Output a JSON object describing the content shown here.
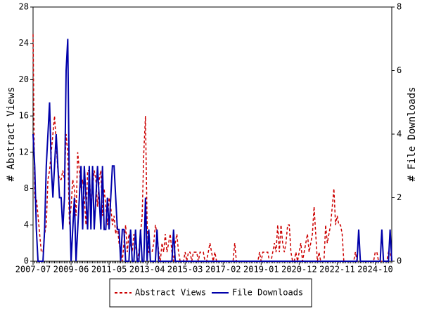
{
  "chart_data": {
    "type": "line",
    "categories": [
      "2007-07",
      null,
      null,
      null,
      null,
      null,
      null,
      null,
      null,
      null,
      null,
      null,
      null,
      null,
      null,
      null,
      null,
      null,
      null,
      null,
      null,
      null,
      null,
      "2009-06",
      null,
      null,
      null,
      null,
      null,
      null,
      null,
      null,
      null,
      null,
      null,
      null,
      null,
      null,
      null,
      null,
      null,
      null,
      null,
      null,
      null,
      null,
      "2011-05",
      null,
      null,
      null,
      null,
      null,
      null,
      null,
      null,
      null,
      null,
      null,
      null,
      null,
      null,
      null,
      null,
      null,
      null,
      null,
      null,
      null,
      null,
      "2013-04",
      null,
      null,
      null,
      null,
      null,
      null,
      null,
      null,
      null,
      null,
      null,
      null,
      null,
      null,
      null,
      null,
      null,
      null,
      null,
      null,
      null,
      null,
      "2015-03",
      null,
      null,
      null,
      null,
      null,
      null,
      null,
      null,
      null,
      null,
      null,
      null,
      null,
      null,
      null,
      null,
      null,
      null,
      null,
      null,
      null,
      null,
      "2017-02",
      null,
      null,
      null,
      null,
      null,
      null,
      null,
      null,
      null,
      null,
      null,
      null,
      null,
      null,
      null,
      null,
      null,
      null,
      null,
      null,
      null,
      null,
      "2019-01",
      null,
      null,
      null,
      null,
      null,
      null,
      null,
      null,
      null,
      null,
      null,
      null,
      null,
      null,
      null,
      null,
      null,
      null,
      null,
      null,
      null,
      null,
      "2020-12",
      null,
      null,
      null,
      null,
      null,
      null,
      null,
      null,
      null,
      null,
      null,
      null,
      null,
      null,
      null,
      null,
      null,
      null,
      null,
      null,
      null,
      null,
      "2022-11",
      null,
      null,
      null,
      null,
      null,
      null,
      null,
      null,
      null,
      null,
      null,
      null,
      null,
      null,
      null,
      null,
      null,
      null,
      null,
      null,
      null,
      null,
      "2024-10",
      null,
      null,
      null,
      null,
      null,
      null,
      null,
      null,
      null,
      null
    ],
    "series": [
      {
        "name": "Abstract Views",
        "color": "#cc0000",
        "dash": true,
        "axis": "y",
        "values": [
          25,
          7,
          7,
          5,
          3,
          1,
          1,
          3,
          4,
          9,
          10,
          12,
          14,
          16,
          13,
          10,
          9,
          9,
          10,
          9,
          14,
          12,
          4,
          6,
          9,
          8,
          5,
          12,
          10,
          8,
          9,
          7,
          4,
          10,
          10,
          6,
          8,
          10,
          9,
          6,
          9,
          10,
          5,
          8,
          6,
          4,
          7,
          6,
          4,
          5,
          3,
          4,
          2,
          1,
          0,
          2,
          4,
          1,
          3,
          2,
          1,
          3,
          2,
          0,
          1,
          3,
          5,
          12,
          16,
          4,
          1,
          1,
          1,
          2,
          4,
          3,
          1,
          0,
          2,
          1,
          3,
          1,
          2,
          3,
          1,
          0,
          2,
          3,
          1,
          0,
          0,
          0,
          1,
          0,
          1,
          1,
          0,
          1,
          1,
          1,
          0,
          1,
          1,
          1,
          0,
          0,
          1,
          2,
          1,
          0,
          1,
          0,
          0,
          0,
          0,
          0,
          0,
          0,
          0,
          0,
          0,
          0,
          2,
          0,
          0,
          0,
          0,
          0,
          0,
          0,
          0,
          0,
          0,
          0,
          0,
          0,
          0,
          1,
          0,
          1,
          1,
          1,
          1,
          0,
          0,
          1,
          2,
          1,
          4,
          1,
          4,
          2,
          1,
          2,
          4,
          4,
          1,
          0,
          0,
          1,
          0,
          1,
          2,
          0,
          1,
          2,
          3,
          1,
          2,
          3,
          6,
          3,
          0,
          1,
          0,
          0,
          0,
          4,
          2,
          3,
          4,
          6,
          8,
          4,
          5,
          4,
          4,
          3,
          0,
          0,
          0,
          0,
          0,
          0,
          0,
          1,
          0,
          0,
          0,
          0,
          0,
          0,
          0,
          0,
          0,
          0,
          0,
          1,
          1,
          0,
          0,
          0,
          0,
          0,
          0,
          1,
          1,
          0
        ]
      },
      {
        "name": "File Downloads",
        "color": "#0000aa",
        "dash": false,
        "axis": "y2",
        "values": [
          4,
          3,
          1,
          0,
          0,
          0,
          0,
          1,
          3,
          4,
          5,
          3,
          2,
          3,
          4,
          3,
          2,
          2,
          1,
          2,
          6,
          7,
          2,
          0,
          1,
          2,
          0,
          1,
          2,
          3,
          1,
          3,
          2,
          1,
          3,
          1,
          3,
          1,
          2,
          3,
          2,
          1,
          3,
          1,
          1,
          2,
          1,
          2,
          3,
          3,
          2,
          1,
          1,
          0,
          1,
          1,
          0,
          0,
          0,
          1,
          0,
          0,
          1,
          0,
          0,
          1,
          0,
          0,
          2,
          0,
          1,
          0,
          0,
          0,
          0,
          1,
          0,
          0,
          0,
          0,
          0,
          0,
          0,
          0,
          0,
          1,
          0,
          0,
          0,
          0,
          0,
          0,
          0,
          0,
          0,
          0,
          0,
          0,
          0,
          0,
          0,
          0,
          0,
          0,
          0,
          0,
          0,
          0,
          0,
          0,
          0,
          0,
          0,
          0,
          0,
          0,
          0,
          0,
          0,
          0,
          0,
          0,
          0,
          0,
          0,
          0,
          0,
          0,
          0,
          0,
          0,
          0,
          0,
          0,
          0,
          0,
          0,
          0,
          0,
          0,
          0,
          0,
          0,
          0,
          0,
          0,
          0,
          0,
          0,
          0,
          0,
          0,
          0,
          0,
          0,
          0,
          0,
          0,
          0,
          0,
          0,
          0,
          0,
          0,
          0,
          0,
          0,
          0,
          0,
          0,
          0,
          0,
          0,
          0,
          0,
          0,
          0,
          0,
          0,
          0,
          0,
          0,
          0,
          0,
          0,
          0,
          0,
          0,
          0,
          0,
          0,
          0,
          0,
          0,
          0,
          0,
          0,
          1,
          0,
          0,
          0,
          0,
          0,
          0,
          0,
          0,
          0,
          0,
          0,
          0,
          0,
          1,
          0,
          0,
          0,
          0,
          1,
          0
        ]
      }
    ],
    "ylabel": "# Abstract Views",
    "y2label": "# File Downloads",
    "ylim": [
      0,
      28
    ],
    "yticks": [
      0,
      4,
      8,
      12,
      16,
      20,
      24,
      28
    ],
    "y2lim": [
      0,
      8
    ],
    "y2ticks": [
      0,
      2,
      4,
      6,
      8
    ],
    "legend": "bottom",
    "grid": false
  }
}
